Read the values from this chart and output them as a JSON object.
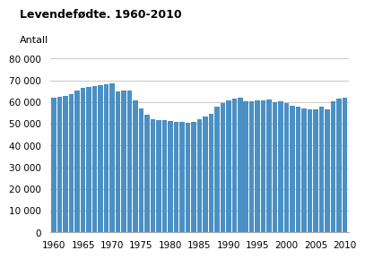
{
  "title": "Levendefødte. 1960-2010",
  "ylabel": "Antall",
  "bar_color": "#4a90c4",
  "background_color": "#ffffff",
  "plot_bg_color": "#ffffff",
  "grid_color": "#c8c8c8",
  "ylim": [
    0,
    80000
  ],
  "yticks": [
    0,
    10000,
    20000,
    30000,
    40000,
    50000,
    60000,
    70000,
    80000
  ],
  "ytick_labels": [
    "0",
    "10 000",
    "20 000",
    "30 000",
    "40 000",
    "50 000",
    "60 000",
    "70 000",
    "80 000"
  ],
  "xticks": [
    1960,
    1965,
    1970,
    1975,
    1980,
    1985,
    1990,
    1995,
    2000,
    2005,
    2010
  ],
  "years": [
    1960,
    1961,
    1962,
    1963,
    1964,
    1965,
    1966,
    1967,
    1968,
    1969,
    1970,
    1971,
    1972,
    1973,
    1974,
    1975,
    1976,
    1977,
    1978,
    1979,
    1980,
    1981,
    1982,
    1983,
    1984,
    1985,
    1986,
    1987,
    1988,
    1989,
    1990,
    1991,
    1992,
    1993,
    1994,
    1995,
    1996,
    1997,
    1998,
    1999,
    2000,
    2001,
    2002,
    2003,
    2004,
    2005,
    2006,
    2007,
    2008,
    2009,
    2010
  ],
  "values": [
    62000,
    62500,
    62700,
    63800,
    65200,
    66500,
    67000,
    67500,
    67800,
    68200,
    68500,
    64900,
    65200,
    65500,
    60800,
    57200,
    54200,
    51900,
    51700,
    51500,
    51200,
    51000,
    50700,
    50600,
    51000,
    52200,
    53200,
    54700,
    57900,
    59700,
    60900,
    61700,
    61900,
    60200,
    60500,
    60700,
    60900,
    61100,
    59800,
    60200,
    59700,
    58200,
    57700,
    56900,
    56500,
    56800,
    57700,
    56700,
    60500,
    61700,
    62000
  ]
}
